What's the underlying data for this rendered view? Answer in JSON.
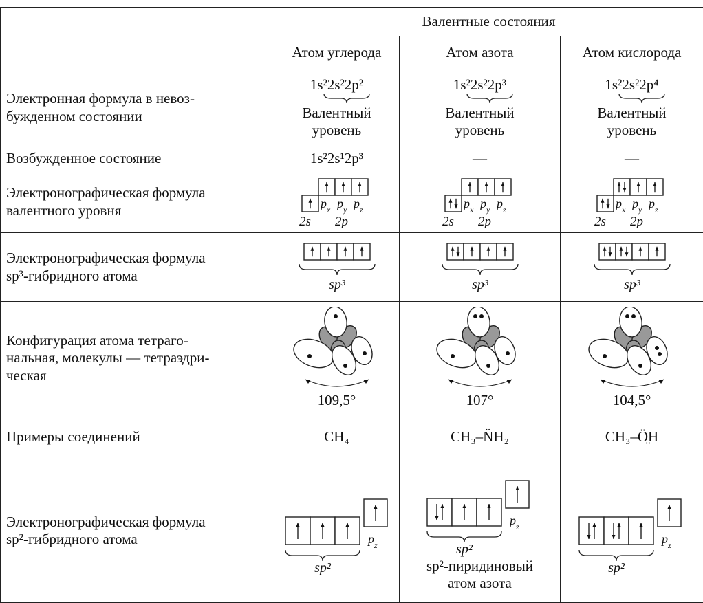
{
  "table": {
    "header": {
      "group": "Валентные состояния",
      "columns": [
        "Атом углерода",
        "Атом азота",
        "Атом кислорода"
      ]
    },
    "rows": [
      {
        "label": "Электронная формула в невоз-\nбужденном состоянии",
        "cells": [
          {
            "formula": "1s²2s²2p²",
            "note": "Валентный\nуровень"
          },
          {
            "formula": "1s²2s²2p³",
            "note": "Валентный\nуровень"
          },
          {
            "formula": "1s²2s²2p⁴",
            "note": "Валентный\nуровень"
          }
        ]
      },
      {
        "label": "Возбужденное состояние",
        "cells": [
          "1s²2s¹2p³",
          "—",
          "—"
        ]
      },
      {
        "label": "Электронографическая формула\nвалентного уровня",
        "cells": [
          {
            "orbitals": [
              {
                "base": "p",
                "sub": "x"
              },
              {
                "base": "p",
                "sub": "y"
              },
              {
                "base": "p",
                "sub": "z"
              }
            ],
            "s_level": "2s",
            "p_level": "2p"
          },
          {
            "orbitals": [
              {
                "base": "p",
                "sub": "x"
              },
              {
                "base": "p",
                "sub": "y"
              },
              {
                "base": "p",
                "sub": "z"
              }
            ],
            "s_level": "2s",
            "p_level": "2p"
          },
          {
            "orbitals": [
              {
                "base": "p",
                "sub": "x"
              },
              {
                "base": "p",
                "sub": "y"
              },
              {
                "base": "p",
                "sub": "z"
              }
            ],
            "s_level": "2s",
            "p_level": "2p"
          }
        ]
      },
      {
        "label": "Электронографическая формула\nsp³-гибридного атома",
        "cells": [
          {
            "hybrid": "sp³"
          },
          {
            "hybrid": "sp³"
          },
          {
            "hybrid": "sp³"
          }
        ]
      },
      {
        "label": "Конфигурация атома тетраго-\nнальная, молекулы — тетраэдри-\nческая",
        "cells": [
          {
            "angle": "109,5°"
          },
          {
            "angle": "107°"
          },
          {
            "angle": "104,5°"
          }
        ]
      },
      {
        "label": "Примеры соединений",
        "cells": [
          "CH₄",
          "CH₃–N̈H₂",
          "CH₃–Ö̤H"
        ]
      },
      {
        "label": "Электронографическая формула\nsp²-гибридного атома",
        "cells": [
          {
            "hybrid": "sp²",
            "orbital": {
              "base": "p",
              "sub": "z"
            }
          },
          {
            "hybrid": "sp²",
            "orbital": {
              "base": "p",
              "sub": "z"
            },
            "note": "sp²-пиридиновый\nатом азота"
          },
          {
            "hybrid": "sp²",
            "orbital": {
              "base": "p",
              "sub": "z"
            }
          }
        ]
      }
    ]
  }
}
